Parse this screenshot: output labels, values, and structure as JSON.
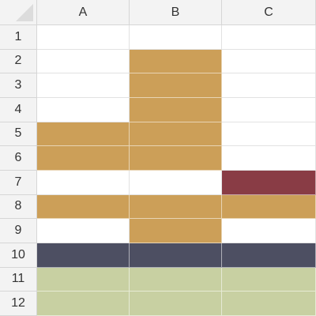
{
  "columns": [
    "A",
    "B",
    "C"
  ],
  "rows": [
    "1",
    "2",
    "3",
    "4",
    "5",
    "6",
    "7",
    "8",
    "9",
    "10",
    "11",
    "12"
  ],
  "palette": {
    "blank": "#ffffff",
    "ochre": "#cc9f58",
    "maroon": "#893c45",
    "slate": "#4d4f62",
    "sage": "#c8d0a2"
  },
  "cell_colors": [
    [
      "blank",
      "blank",
      "blank"
    ],
    [
      "blank",
      "ochre",
      "blank"
    ],
    [
      "blank",
      "ochre",
      "blank"
    ],
    [
      "blank",
      "ochre",
      "blank"
    ],
    [
      "ochre",
      "ochre",
      "blank"
    ],
    [
      "ochre",
      "ochre",
      "blank"
    ],
    [
      "blank",
      "blank",
      "maroon"
    ],
    [
      "ochre",
      "ochre",
      "ochre"
    ],
    [
      "blank",
      "ochre",
      "blank"
    ],
    [
      "slate",
      "slate",
      "slate"
    ],
    [
      "sage",
      "sage",
      "sage"
    ],
    [
      "sage",
      "sage",
      "sage"
    ]
  ]
}
